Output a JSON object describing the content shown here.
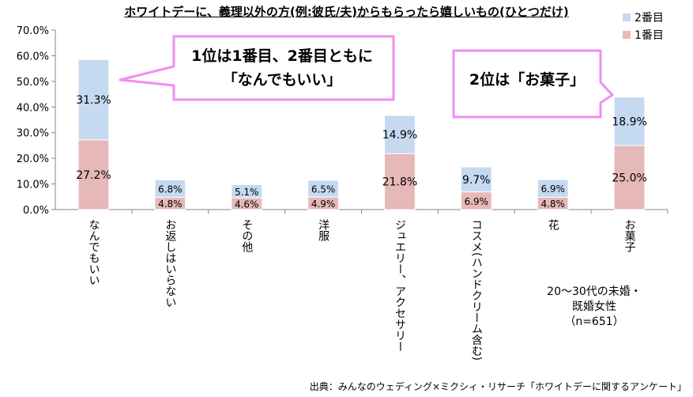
{
  "title": "ホワイトデーに、義理以外の方(例:彼氏/夫)からもらったら嬉しいもの(ひとつだけ)",
  "callouts": {
    "first": [
      "1位は1番目、2番目ともに",
      "「なんでもいい」"
    ],
    "second": "2位は「お菓子」"
  },
  "note": [
    "20〜30代の未婚・",
    "既婚女性",
    "（n=651）"
  ],
  "source": "出典：みんなのウェディング×ミクシィ・リサーチ「ホワイトデーに関するアンケート」",
  "colors": {
    "first": "#E6B8B7",
    "second": "#C5D9F1",
    "callout_border": "#F08EF0"
  },
  "chart_data": {
    "type": "bar",
    "stacked": true,
    "categories": [
      "なんでもいい",
      "お返しはいらない",
      "その他",
      "洋服",
      "ジュエリー、アクセサリー",
      "コスメ(ハンドクリーム含む)",
      "花",
      "お菓子"
    ],
    "series": [
      {
        "name": "1番目",
        "values": [
          27.2,
          4.8,
          4.6,
          4.9,
          21.8,
          6.9,
          4.8,
          25.0
        ]
      },
      {
        "name": "2番目",
        "values": [
          31.3,
          6.8,
          5.1,
          6.5,
          14.9,
          9.7,
          6.9,
          18.9
        ]
      }
    ],
    "ylim": [
      0,
      70
    ],
    "yticks": [
      "0.0%",
      "10.0%",
      "20.0%",
      "30.0%",
      "40.0%",
      "50.0%",
      "60.0%",
      "70.0%"
    ],
    "legend": "top-right",
    "grid": false
  }
}
